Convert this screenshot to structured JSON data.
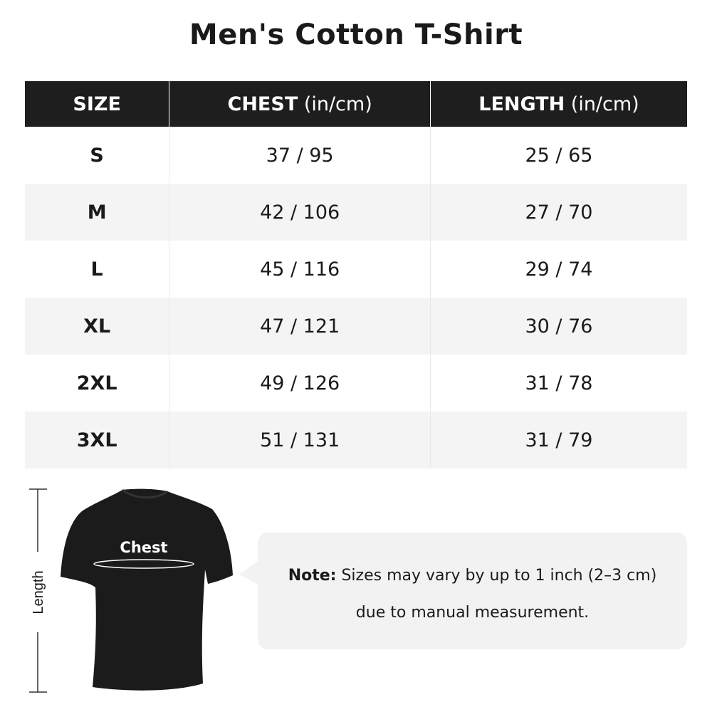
{
  "title": "Men's Cotton T-Shirt",
  "table": {
    "headers": [
      {
        "label": "SIZE",
        "unit": ""
      },
      {
        "label": "CHEST",
        "unit": " (in/cm)"
      },
      {
        "label": "LENGTH",
        "unit": " (in/cm)"
      }
    ],
    "rows": [
      {
        "size": "S",
        "chest": "37 / 95",
        "length": "25 / 65"
      },
      {
        "size": "M",
        "chest": "42 / 106",
        "length": "27 / 70"
      },
      {
        "size": "L",
        "chest": "45 / 116",
        "length": "29 / 74"
      },
      {
        "size": "XL",
        "chest": "47 / 121",
        "length": "30 / 76"
      },
      {
        "size": "2XL",
        "chest": "49 / 126",
        "length": "31 / 78"
      },
      {
        "size": "3XL",
        "chest": "51 / 131",
        "length": "31 / 79"
      }
    ]
  },
  "diagram": {
    "chest_label": "Chest",
    "length_label": "Length"
  },
  "note": {
    "prefix": "Note:",
    "line1": " Sizes may vary by up to 1 inch (2–3 cm)",
    "line2": "due to manual measurement."
  },
  "colors": {
    "header_bg": "#1e1e1e",
    "stripe": "#f4f4f4",
    "note_bg": "#f2f2f2"
  }
}
